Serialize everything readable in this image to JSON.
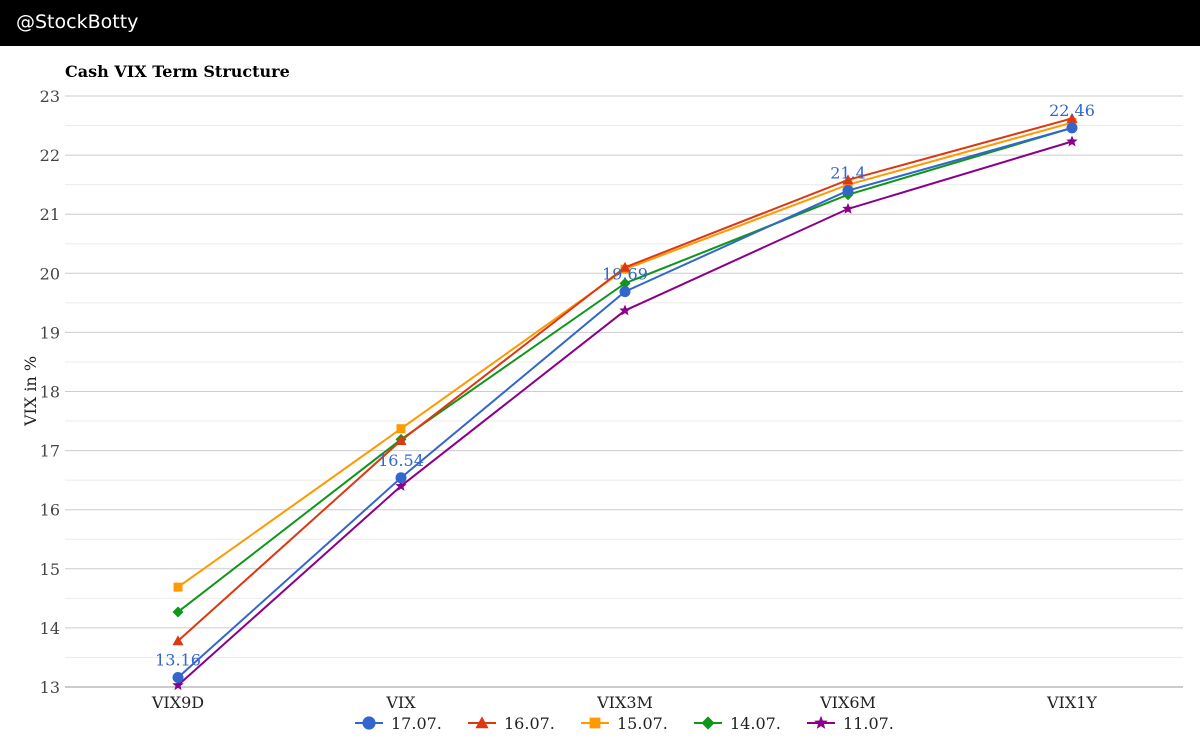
{
  "header": {
    "handle": "@StockBotty"
  },
  "chart_data": {
    "type": "line",
    "title": "Cash VIX Term Structure",
    "xlabel": "",
    "ylabel": "VIX in %",
    "ylim": [
      13,
      23
    ],
    "yticks": [
      "13",
      "14",
      "15",
      "16",
      "17",
      "18",
      "19",
      "20",
      "21",
      "22",
      "23"
    ],
    "categories": [
      "VIX9D",
      "VIX",
      "VIX3M",
      "VIX6M",
      "VIX1Y"
    ],
    "grid": true,
    "legend_position": "bottom",
    "series": [
      {
        "name": "11.07.",
        "color": "#8b008b",
        "marker": "star",
        "values": [
          13.03,
          16.4,
          19.37,
          21.09,
          22.23
        ]
      },
      {
        "name": "14.07.",
        "color": "#109618",
        "marker": "diamond",
        "values": [
          14.27,
          17.19,
          19.83,
          21.33,
          22.46
        ]
      },
      {
        "name": "15.07.",
        "color": "#ff9900",
        "marker": "square",
        "values": [
          14.69,
          17.37,
          20.07,
          21.5,
          22.55
        ]
      },
      {
        "name": "16.07.",
        "color": "#dc3912",
        "marker": "triangle",
        "values": [
          13.78,
          17.17,
          20.1,
          21.58,
          22.62
        ]
      },
      {
        "name": "17.07.",
        "color": "#3366cc",
        "marker": "circle",
        "values": [
          13.16,
          16.54,
          19.69,
          21.4,
          22.46
        ]
      }
    ],
    "data_labels": {
      "series": "17.07.",
      "texts": [
        "13.16",
        "16.54",
        "19.69",
        "21.4",
        "22.46"
      ]
    },
    "legend_order": [
      "17.07.",
      "16.07.",
      "15.07.",
      "14.07.",
      "11.07."
    ]
  }
}
